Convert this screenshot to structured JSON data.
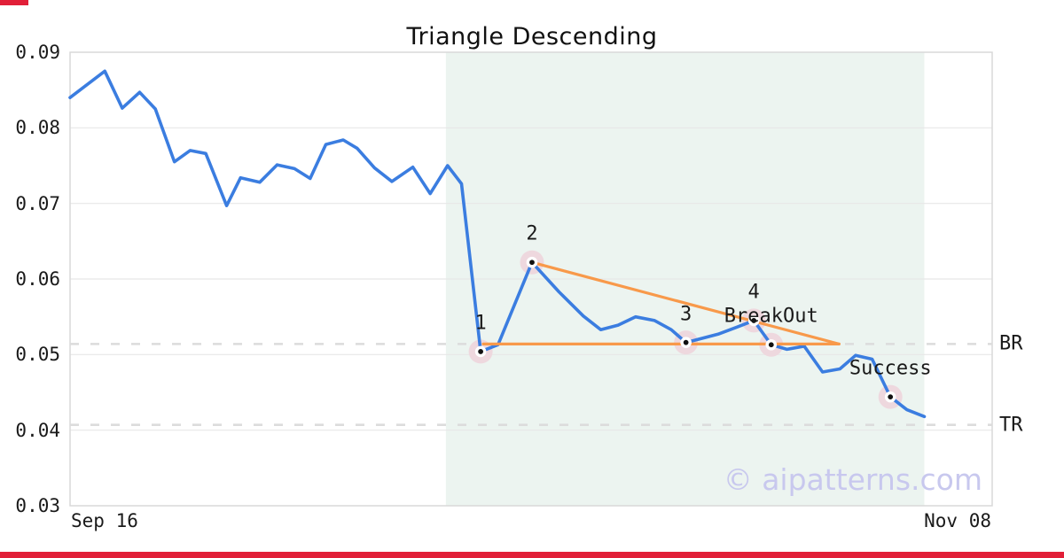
{
  "title": "Triangle Descending",
  "watermark": "© aipatterns.com",
  "axis": {
    "x_left_label": "Sep 16",
    "x_right_label": "Nov 08",
    "y_tick_labels": [
      "0.09",
      "0.08",
      "0.07",
      "0.06",
      "0.05",
      "0.04",
      "0.03"
    ]
  },
  "colors": {
    "line": "#3b7de0",
    "trend": "#f8994a",
    "shade": "#ecf4f0",
    "grid": "#e7e7e7",
    "spine": "#d9d9d9",
    "dash": "#dcdcdc",
    "halo": "#eed8de",
    "marker": "#111111",
    "marker_edge": "#ffffff",
    "text": "#1a1a1a",
    "watermark": "#c8c8ee",
    "accent_red": "#e11f38"
  },
  "chart_data": {
    "type": "line",
    "title": "Triangle Descending",
    "xlabel": "",
    "ylabel": "",
    "x_range_labels": [
      "Sep 16",
      "Nov 08"
    ],
    "x_span_days": 53,
    "ylim": [
      0.03,
      0.09
    ],
    "y_ticks": [
      0.03,
      0.04,
      0.05,
      0.06,
      0.07,
      0.08,
      0.09
    ],
    "grid": "horizontal",
    "pattern_zone_days": [
      21.6,
      49.1
    ],
    "series": [
      {
        "name": "price",
        "points": [
          [
            0,
            0.084
          ],
          [
            2,
            0.0875
          ],
          [
            3,
            0.0826
          ],
          [
            4,
            0.0847
          ],
          [
            4.9,
            0.0825
          ],
          [
            6,
            0.0755
          ],
          [
            6.9,
            0.077
          ],
          [
            7.8,
            0.0766
          ],
          [
            9,
            0.0697
          ],
          [
            9.8,
            0.0734
          ],
          [
            10.9,
            0.0728
          ],
          [
            11.9,
            0.0751
          ],
          [
            12.9,
            0.0746
          ],
          [
            13.8,
            0.0733
          ],
          [
            14.7,
            0.0778
          ],
          [
            15.7,
            0.0784
          ],
          [
            16.5,
            0.0773
          ],
          [
            17.5,
            0.0747
          ],
          [
            18.5,
            0.0729
          ],
          [
            19.7,
            0.0748
          ],
          [
            20.7,
            0.0713
          ],
          [
            21.7,
            0.075
          ],
          [
            22.5,
            0.0726
          ],
          [
            23.6,
            0.0504
          ],
          [
            24.6,
            0.0513
          ],
          [
            26.55,
            0.0622
          ],
          [
            28.1,
            0.0583
          ],
          [
            29.5,
            0.0551
          ],
          [
            30.5,
            0.0533
          ],
          [
            31.5,
            0.0539
          ],
          [
            32.5,
            0.055
          ],
          [
            33.6,
            0.0545
          ],
          [
            34.55,
            0.0533
          ],
          [
            35.4,
            0.0516
          ],
          [
            37.25,
            0.0527
          ],
          [
            38.3,
            0.0536
          ],
          [
            39.3,
            0.0545
          ],
          [
            40.3,
            0.0513
          ],
          [
            41.2,
            0.0507
          ],
          [
            42.2,
            0.0511
          ],
          [
            43.25,
            0.0477
          ],
          [
            44.25,
            0.0481
          ],
          [
            45.15,
            0.0499
          ],
          [
            46.1,
            0.0494
          ],
          [
            47.15,
            0.0444
          ],
          [
            48.1,
            0.0427
          ],
          [
            49.1,
            0.0418
          ]
        ]
      }
    ],
    "levels": [
      {
        "label": "BR",
        "value": 0.0514
      },
      {
        "label": "TR",
        "value": 0.0407
      }
    ],
    "triangle": {
      "support": [
        [
          23.75,
          0.0514
        ],
        [
          44.2,
          0.0514
        ]
      ],
      "resistance": [
        [
          26.55,
          0.0622
        ],
        [
          44.2,
          0.0514
        ]
      ]
    },
    "annotations": [
      {
        "label": "1",
        "day": 23.6,
        "price": 0.0504
      },
      {
        "label": "2",
        "day": 26.55,
        "price": 0.0622
      },
      {
        "label": "3",
        "day": 35.4,
        "price": 0.0516
      },
      {
        "label": "4",
        "day": 39.3,
        "price": 0.0545
      },
      {
        "label": "BreakOut",
        "day": 40.3,
        "price": 0.0513
      },
      {
        "label": "Success",
        "day": 47.15,
        "price": 0.0444
      }
    ]
  }
}
